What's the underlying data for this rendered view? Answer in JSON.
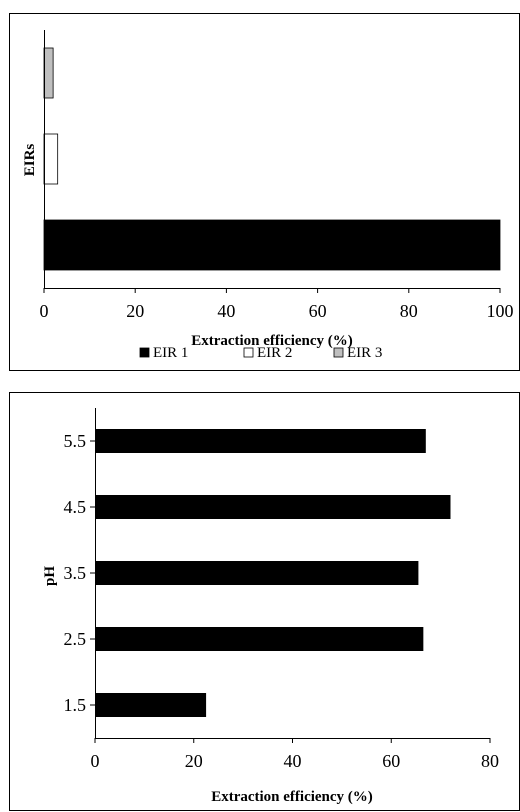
{
  "chart_data": [
    {
      "type": "bar",
      "orientation": "horizontal",
      "ylabel": "EIRs",
      "xlabel": "Extraction efficiency (%)",
      "xlim": [
        0,
        100
      ],
      "xticks": [
        "0",
        "20",
        "40",
        "60",
        "80",
        "100"
      ],
      "grid": false,
      "legend_position": "bottom",
      "series": [
        {
          "name": "EIR 1",
          "value": 100,
          "color": "#000000"
        },
        {
          "name": "EIR 2",
          "value": 3,
          "color": "#ffffff"
        },
        {
          "name": "EIR 3",
          "value": 2,
          "color": "#bfbfbf"
        }
      ]
    },
    {
      "type": "bar",
      "orientation": "horizontal",
      "ylabel": "pH",
      "xlabel": "Extraction efficiency (%)",
      "xlim": [
        0,
        80
      ],
      "xticks": [
        "0",
        "20",
        "40",
        "60",
        "80"
      ],
      "grid": false,
      "categories": [
        "1.5",
        "2.5",
        "3.5",
        "4.5",
        "5.5"
      ],
      "values": [
        22.5,
        66.5,
        65.5,
        72,
        67
      ],
      "color": "#000000"
    }
  ]
}
